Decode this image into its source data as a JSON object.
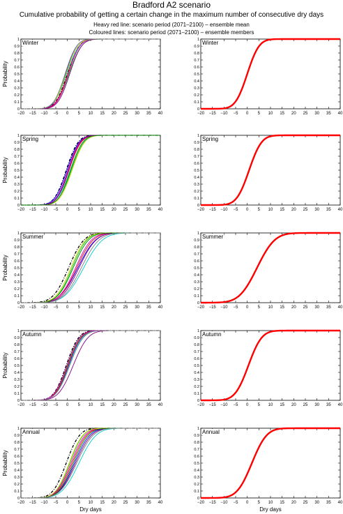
{
  "figure": {
    "title": "Bradford A2 scenario",
    "subtitle": "Cumulative probability of getting a certain change in the maximum number of consecutive dry days",
    "note_mean": "Heavy red line: scenario period (2071–2100) – ensemble mean",
    "note_members": "Coloured lines: scenario period (2071–2100) – ensemble members"
  },
  "colors": {
    "mean": "#ff0000",
    "members": [
      "#000000",
      "#0000ff",
      "#00cc00",
      "#ff0000",
      "#00cccc",
      "#cc00cc",
      "#cccc00",
      "#800080",
      "#008000",
      "#808080"
    ]
  },
  "axes_common": {
    "xlabel": "Dry days",
    "ylabel": "Probability",
    "xlim": [
      -20,
      40
    ],
    "ylim": [
      0,
      1
    ],
    "xticks": [
      -20,
      -15,
      -10,
      -5,
      0,
      5,
      10,
      15,
      20,
      25,
      30,
      35,
      40
    ],
    "yticks": [
      0,
      0.1,
      0.2,
      0.3,
      0.4,
      0.5,
      0.6,
      0.7,
      0.8,
      0.9,
      1
    ],
    "ytick_labels": [
      "0",
      "0.1",
      "0.2",
      "0.3",
      "0.4",
      "0.5",
      "0.6",
      "0.7",
      "0.8",
      "0.9",
      "1"
    ],
    "grid": false
  },
  "chart_data": [
    {
      "type": "line",
      "panel": "left",
      "label": "Winter",
      "curve_kind": "members",
      "series": [
        {
          "color": "#000000",
          "mean": 0.0,
          "sd": 4.0,
          "dash": "dashdot"
        },
        {
          "color": "#0000ff",
          "mean": -0.8,
          "sd": 3.8
        },
        {
          "color": "#00cc00",
          "mean": 0.7,
          "sd": 4.2
        },
        {
          "color": "#ff0000",
          "mean": 0.2,
          "sd": 4.0
        },
        {
          "color": "#00cccc",
          "mean": -0.3,
          "sd": 4.3
        },
        {
          "color": "#cc00cc",
          "mean": 0.4,
          "sd": 3.9
        },
        {
          "color": "#cccc00",
          "mean": -0.6,
          "sd": 4.1
        },
        {
          "color": "#800080",
          "mean": 1.0,
          "sd": 4.0
        },
        {
          "color": "#808080",
          "mean": -1.0,
          "sd": 3.9
        }
      ]
    },
    {
      "type": "line",
      "panel": "right",
      "label": "Winter",
      "curve_kind": "mean",
      "series": [
        {
          "color": "#ff0000",
          "mean": 0.0,
          "sd": 4.0,
          "heavy": true
        }
      ]
    },
    {
      "type": "line",
      "panel": "left",
      "label": "Spring",
      "curve_kind": "members",
      "series": [
        {
          "color": "#000000",
          "mean": -0.5,
          "sd": 4.0,
          "dash": "dashdot"
        },
        {
          "color": "#0000ff",
          "mean": -0.2,
          "sd": 4.1
        },
        {
          "color": "#00cc00",
          "mean": 1.7,
          "sd": 4.3
        },
        {
          "color": "#ff0000",
          "mean": 0.7,
          "sd": 4.1
        },
        {
          "color": "#00cccc",
          "mean": 1.2,
          "sd": 4.4
        },
        {
          "color": "#cc00cc",
          "mean": 0.2,
          "sd": 4.0
        },
        {
          "color": "#cccc00",
          "mean": 2.0,
          "sd": 4.2
        },
        {
          "color": "#800080",
          "mean": 0.5,
          "sd": 4.0
        },
        {
          "color": "#008000",
          "mean": 1.4,
          "sd": 4.1
        }
      ]
    },
    {
      "type": "line",
      "panel": "right",
      "label": "Spring",
      "curve_kind": "mean",
      "series": [
        {
          "color": "#ff0000",
          "mean": 0.8,
          "sd": 4.2,
          "heavy": true
        }
      ]
    },
    {
      "type": "line",
      "panel": "left",
      "label": "Summer",
      "curve_kind": "members",
      "series": [
        {
          "color": "#000000",
          "mean": 0.5,
          "sd": 5.2,
          "dash": "dashdot"
        },
        {
          "color": "#0000ff",
          "mean": 4.5,
          "sd": 6.0
        },
        {
          "color": "#00cc00",
          "mean": 2.0,
          "sd": 5.0
        },
        {
          "color": "#ff0000",
          "mean": 4.0,
          "sd": 5.6
        },
        {
          "color": "#00cccc",
          "mean": 7.0,
          "sd": 6.4
        },
        {
          "color": "#cc00cc",
          "mean": 3.5,
          "sd": 5.4
        },
        {
          "color": "#cccc00",
          "mean": 1.5,
          "sd": 5.0
        },
        {
          "color": "#800080",
          "mean": 5.0,
          "sd": 5.8
        },
        {
          "color": "#008000",
          "mean": 2.5,
          "sd": 5.2
        },
        {
          "color": "#808080",
          "mean": 6.0,
          "sd": 6.0
        }
      ]
    },
    {
      "type": "line",
      "panel": "right",
      "label": "Summer",
      "curve_kind": "mean",
      "series": [
        {
          "color": "#ff0000",
          "mean": 4.2,
          "sd": 6.0,
          "heavy": true
        }
      ]
    },
    {
      "type": "line",
      "panel": "left",
      "label": "Autumn",
      "curve_kind": "members",
      "series": [
        {
          "color": "#000000",
          "mean": -0.5,
          "sd": 4.2,
          "dash": "dashdot"
        },
        {
          "color": "#0000ff",
          "mean": 0.5,
          "sd": 4.4
        },
        {
          "color": "#00cc00",
          "mean": 0.0,
          "sd": 4.3
        },
        {
          "color": "#ff0000",
          "mean": 0.3,
          "sd": 4.4
        },
        {
          "color": "#00cccc",
          "mean": 0.8,
          "sd": 4.5
        },
        {
          "color": "#cc00cc",
          "mean": -0.2,
          "sd": 4.3
        },
        {
          "color": "#800080",
          "mean": 2.5,
          "sd": 5.0
        },
        {
          "color": "#808080",
          "mean": 1.0,
          "sd": 4.6
        }
      ]
    },
    {
      "type": "line",
      "panel": "right",
      "label": "Autumn",
      "curve_kind": "mean",
      "series": [
        {
          "color": "#ff0000",
          "mean": 0.5,
          "sd": 4.5,
          "heavy": true
        }
      ]
    },
    {
      "type": "line",
      "panel": "left",
      "label": "Annual",
      "curve_kind": "members",
      "series": [
        {
          "color": "#000000",
          "mean": -0.5,
          "sd": 4.5,
          "dash": "dashdot"
        },
        {
          "color": "#0000ff",
          "mean": 3.0,
          "sd": 5.2
        },
        {
          "color": "#00cc00",
          "mean": 1.0,
          "sd": 4.6
        },
        {
          "color": "#ff0000",
          "mean": 2.0,
          "sd": 4.9
        },
        {
          "color": "#00cccc",
          "mean": 5.0,
          "sd": 5.8
        },
        {
          "color": "#cc00cc",
          "mean": 1.5,
          "sd": 4.8
        },
        {
          "color": "#cccc00",
          "mean": 0.8,
          "sd": 4.6
        },
        {
          "color": "#800080",
          "mean": 3.5,
          "sd": 5.4
        },
        {
          "color": "#008000",
          "mean": 2.5,
          "sd": 5.0
        },
        {
          "color": "#808080",
          "mean": 4.0,
          "sd": 5.6
        }
      ]
    },
    {
      "type": "line",
      "panel": "right",
      "label": "Annual",
      "curve_kind": "mean",
      "series": [
        {
          "color": "#ff0000",
          "mean": 2.0,
          "sd": 5.0,
          "heavy": true
        }
      ]
    }
  ]
}
